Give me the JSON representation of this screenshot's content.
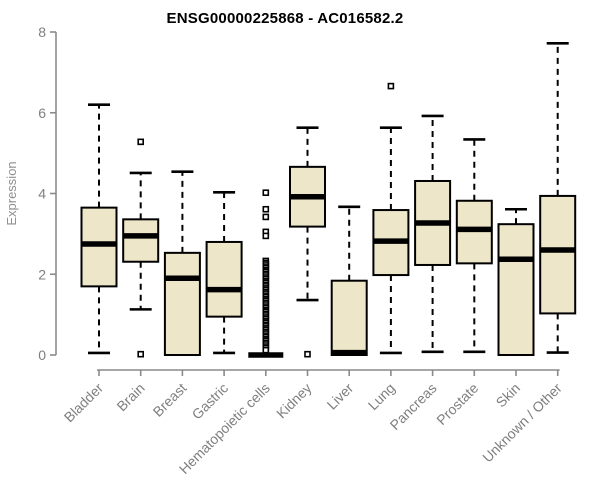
{
  "chart_data": {
    "type": "boxplot",
    "title": "ENSG00000225868 - AC016582.2",
    "xlabel": "",
    "ylabel": "Expression",
    "ylim": [
      0,
      8
    ],
    "yticks": [
      0,
      2,
      4,
      6,
      8
    ],
    "grid": false,
    "categories": [
      "Bladder",
      "Brain",
      "Breast",
      "Gastric",
      "Hematopoietic cells",
      "Kidney",
      "Liver",
      "Lung",
      "Pancreas",
      "Prostate",
      "Skin",
      "Unknown / Other"
    ],
    "series": [
      {
        "name": "Bladder",
        "whislo": 0.05,
        "q1": 1.7,
        "med": 2.75,
        "q3": 3.65,
        "whishi": 6.2,
        "outliers": []
      },
      {
        "name": "Brain",
        "whislo": 1.13,
        "q1": 2.31,
        "med": 2.95,
        "q3": 3.36,
        "whishi": 4.51,
        "outliers": [
          5.28,
          0.02
        ]
      },
      {
        "name": "Breast",
        "whislo": 0.0,
        "q1": 0.0,
        "med": 1.9,
        "q3": 2.53,
        "whishi": 4.54,
        "outliers": []
      },
      {
        "name": "Gastric",
        "whislo": 0.05,
        "q1": 0.95,
        "med": 1.62,
        "q3": 2.8,
        "whishi": 4.03,
        "outliers": []
      },
      {
        "name": "Hematopoietic cells",
        "whislo": 0.0,
        "q1": 0.0,
        "med": 0.0,
        "q3": 0.0,
        "whishi": 0.0,
        "outliers": [
          4.02,
          3.61,
          3.42,
          3.05,
          2.95,
          2.33,
          2.28,
          2.24,
          2.19,
          2.15,
          2.1,
          2.06,
          2.01,
          1.97,
          1.92,
          1.88,
          1.83,
          1.79,
          1.74,
          1.7,
          1.65,
          1.61,
          1.56,
          1.52,
          1.47,
          1.43,
          1.38,
          1.34,
          1.29,
          1.25,
          1.2,
          1.16,
          1.11,
          1.07,
          1.02,
          0.98,
          0.93,
          0.89,
          0.84,
          0.8,
          0.75,
          0.71,
          0.66,
          0.62,
          0.57,
          0.53,
          0.48,
          0.44,
          0.39,
          0.35,
          0.3,
          0.26,
          0.21,
          0.17,
          0.12
        ]
      },
      {
        "name": "Kidney",
        "whislo": 1.36,
        "q1": 3.18,
        "med": 3.92,
        "q3": 4.66,
        "whishi": 5.63,
        "outliers": [
          0.02
        ]
      },
      {
        "name": "Liver",
        "whislo": 0.0,
        "q1": 0.0,
        "med": 0.06,
        "q3": 1.84,
        "whishi": 3.67,
        "outliers": []
      },
      {
        "name": "Lung",
        "whislo": 0.05,
        "q1": 1.98,
        "med": 2.82,
        "q3": 3.59,
        "whishi": 5.63,
        "outliers": [
          6.66
        ]
      },
      {
        "name": "Pancreas",
        "whislo": 0.08,
        "q1": 2.23,
        "med": 3.27,
        "q3": 4.31,
        "whishi": 5.92,
        "outliers": []
      },
      {
        "name": "Prostate",
        "whislo": 0.08,
        "q1": 2.27,
        "med": 3.11,
        "q3": 3.82,
        "whishi": 5.34,
        "outliers": []
      },
      {
        "name": "Skin",
        "whislo": 0.0,
        "q1": 0.0,
        "med": 2.37,
        "q3": 3.24,
        "whishi": 3.61,
        "outliers": []
      },
      {
        "name": "Unknown / Other",
        "whislo": 0.06,
        "q1": 1.03,
        "med": 2.6,
        "q3": 3.94,
        "whishi": 7.72,
        "outliers": []
      }
    ],
    "colors": {
      "box_fill": "#ede6c8",
      "box_border": "#000000",
      "median": "#000000",
      "whisker": "#000000",
      "axis": "#8a8a8a",
      "tick_label": "#7f7f7f",
      "axis_label": "#8f8f8f",
      "title": "#000000",
      "background": "#ffffff"
    }
  }
}
